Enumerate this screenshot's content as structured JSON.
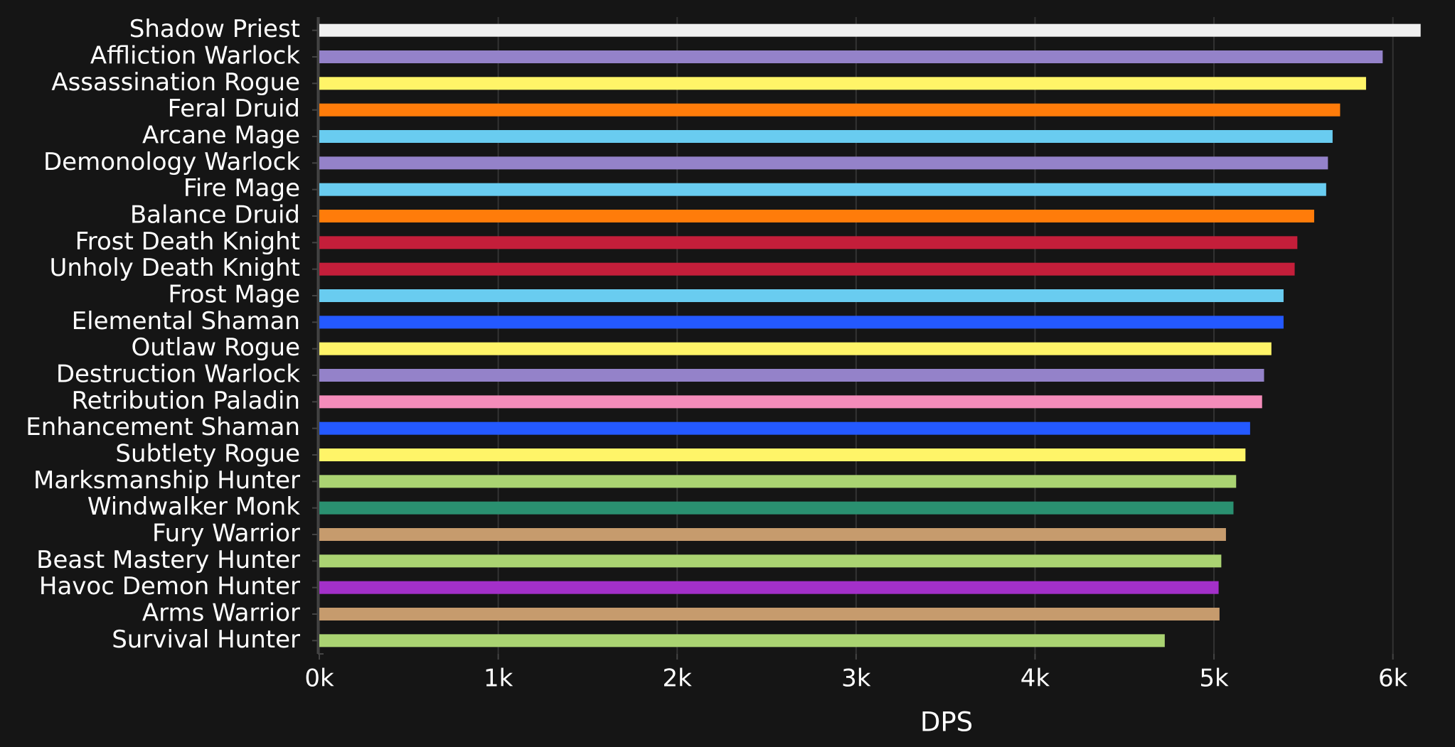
{
  "chart_data": {
    "type": "bar",
    "orientation": "horizontal",
    "categories": [
      "Shadow Priest",
      "Affliction Warlock",
      "Assassination Rogue",
      "Feral Druid",
      "Arcane Mage",
      "Demonology Warlock",
      "Fire Mage",
      "Balance Druid",
      "Frost Death Knight",
      "Unholy Death Knight",
      "Frost Mage",
      "Elemental Shaman",
      "Outlaw Rogue",
      "Destruction Warlock",
      "Retribution Paladin",
      "Enhancement Shaman",
      "Subtlety Rogue",
      "Marksmanship Hunter",
      "Windwalker Monk",
      "Fury Warrior",
      "Beast Mastery Hunter",
      "Havoc Demon Hunter",
      "Arms Warrior",
      "Survival Hunter"
    ],
    "values": [
      6155,
      5943,
      5850,
      5705,
      5663,
      5637,
      5627,
      5560,
      5466,
      5451,
      5389,
      5389,
      5321,
      5280,
      5269,
      5202,
      5176,
      5124,
      5109,
      5067,
      5041,
      5026,
      5031,
      4725
    ],
    "colors": [
      "#f0f0f0",
      "#9482c9",
      "#fff468",
      "#ff7c0a",
      "#69ccf0",
      "#9482c9",
      "#69ccf0",
      "#ff7c0a",
      "#c41e3a",
      "#c41e3a",
      "#69ccf0",
      "#2459ff",
      "#fff468",
      "#9482c9",
      "#f48cba",
      "#2459ff",
      "#fff468",
      "#aad372",
      "#2a9070",
      "#c69b6d",
      "#aad372",
      "#a330c9",
      "#c69b6d",
      "#aad372"
    ],
    "x_label": "DPS",
    "xlim": [
      0,
      6200
    ],
    "xticks": [
      {
        "value": 0,
        "label": "0k"
      },
      {
        "value": 1000,
        "label": "1k"
      },
      {
        "value": 2000,
        "label": "2k"
      },
      {
        "value": 3000,
        "label": "3k"
      },
      {
        "value": 4000,
        "label": "4k"
      },
      {
        "value": 5000,
        "label": "5k"
      },
      {
        "value": 6000,
        "label": "6k"
      }
    ],
    "grid": true
  }
}
